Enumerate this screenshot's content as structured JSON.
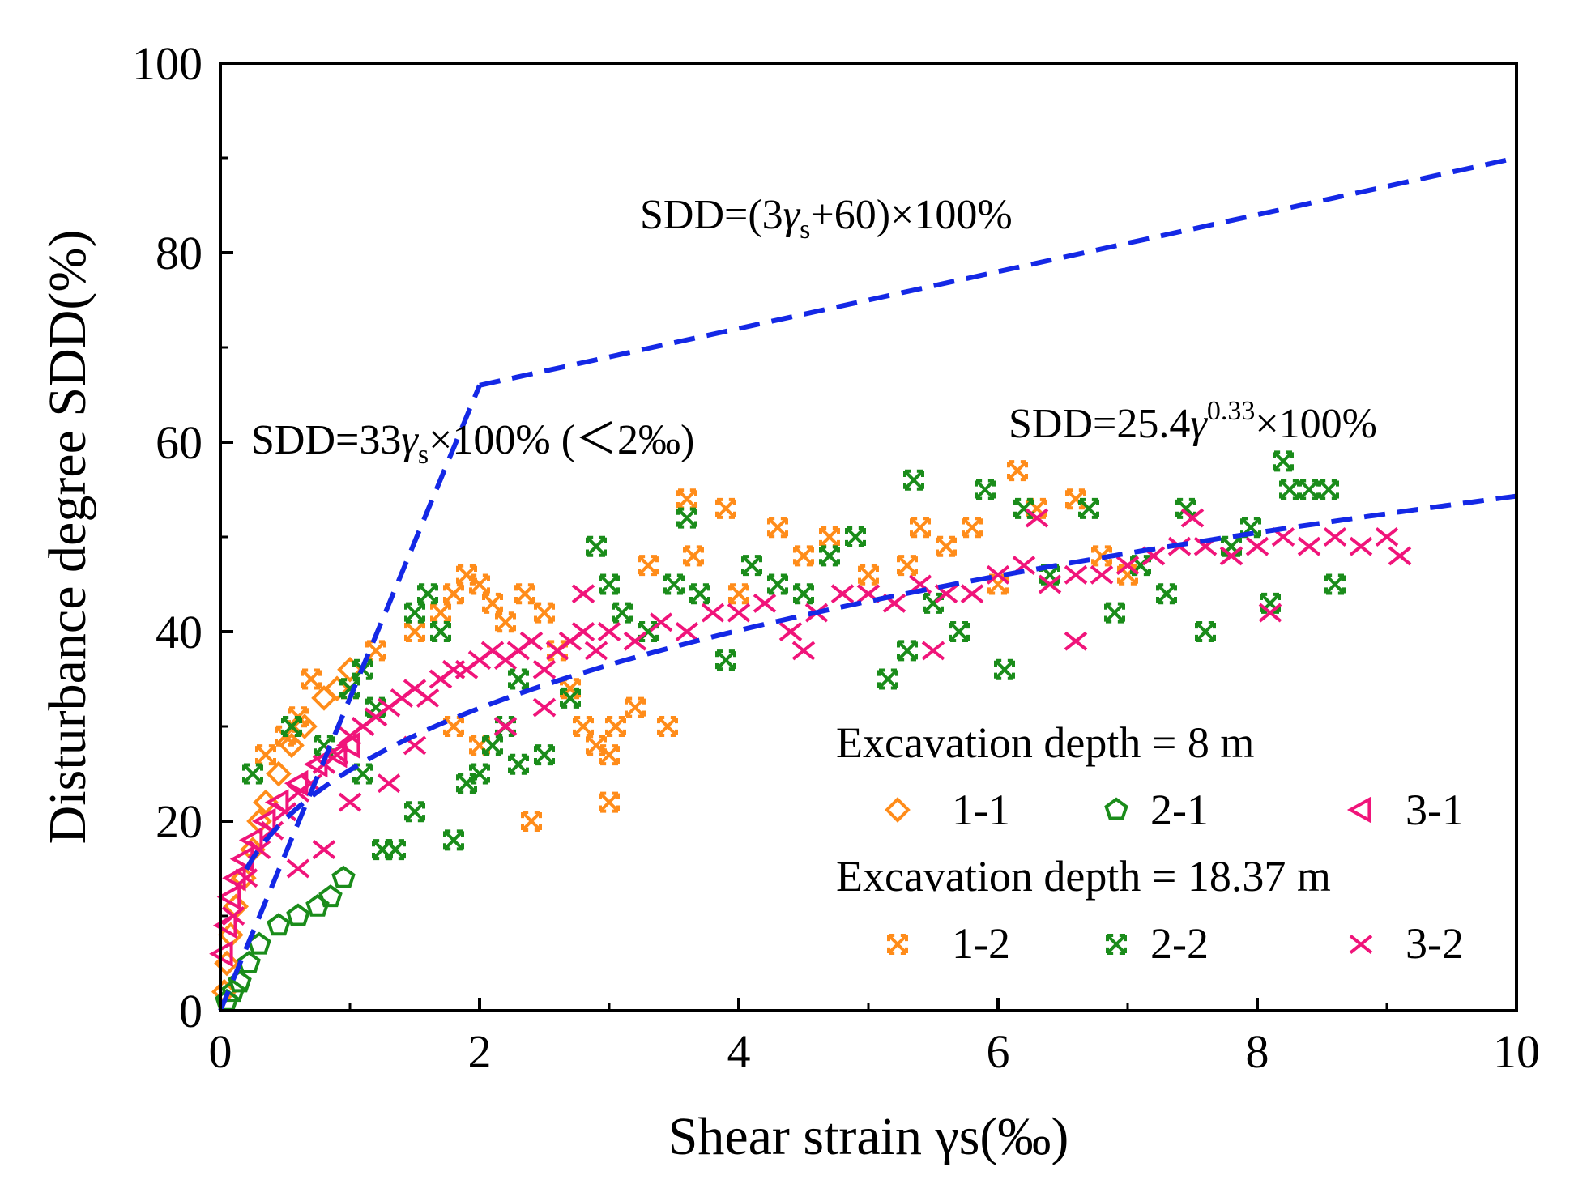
{
  "chart_data": {
    "type": "scatter",
    "xlabel": "Shear strain γs(‰)",
    "ylabel": "Disturbance degree SDD(%)",
    "xlim": [
      0,
      10
    ],
    "ylim": [
      0,
      100
    ],
    "xticks": [
      0,
      2,
      4,
      6,
      8,
      10
    ],
    "yticks": [
      0,
      20,
      40,
      60,
      80,
      100
    ],
    "xtick_labels": [
      "0",
      "2",
      "4",
      "6",
      "8",
      "10"
    ],
    "ytick_labels": [
      "0",
      "20",
      "40",
      "60",
      "80",
      "100"
    ],
    "colors": {
      "orange": "#FF8C1A",
      "green": "#1A8C1A",
      "pink": "#F0147A",
      "blue": "#1428E6"
    },
    "fit_lines": [
      {
        "name": "linear-small-strain",
        "label": "SDD=33γs×100% (＜2‰)",
        "points": [
          [
            0,
            0
          ],
          [
            2,
            66
          ]
        ]
      },
      {
        "name": "linear-large-strain",
        "label": "SDD=(3γs+60)×100%",
        "points": [
          [
            2,
            66
          ],
          [
            10,
            90
          ]
        ]
      },
      {
        "name": "power-fit",
        "label": "SDD=25.4γ0.33×100%",
        "formula": {
          "a": 25.4,
          "b": 0.33
        }
      }
    ],
    "annotation_text": {
      "top": {
        "prefix": "SDD=(3",
        "var": "γ",
        "sub": "s",
        "suffix": "+60)×100%"
      },
      "left": {
        "prefix": "SDD=33",
        "var": "γ",
        "sub": "s",
        "suffix": "×100% (＜2‰)"
      },
      "right": {
        "prefix": "SDD=25.4",
        "var": "γ",
        "sup": "0.33",
        "suffix": "×100%"
      }
    },
    "legend": {
      "group1_title": "Excavation depth = 8 m",
      "group2_title": "Excavation depth = 18.37 m",
      "entries": [
        "1-1",
        "2-1",
        "3-1",
        "1-2",
        "2-2",
        "3-2"
      ]
    },
    "series": [
      {
        "name": "1-1",
        "marker": "diamond",
        "color": "orange",
        "points": [
          [
            0.03,
            2
          ],
          [
            0.05,
            5
          ],
          [
            0.08,
            8
          ],
          [
            0.12,
            11
          ],
          [
            0.18,
            14
          ],
          [
            0.25,
            17
          ],
          [
            0.3,
            20
          ],
          [
            0.35,
            22
          ],
          [
            0.45,
            25
          ],
          [
            0.55,
            28
          ],
          [
            0.65,
            30
          ],
          [
            0.8,
            33
          ],
          [
            0.9,
            34
          ],
          [
            1.0,
            36
          ]
        ]
      },
      {
        "name": "2-1",
        "marker": "pentagon",
        "color": "green",
        "points": [
          [
            0.05,
            1
          ],
          [
            0.1,
            2
          ],
          [
            0.15,
            3
          ],
          [
            0.22,
            5
          ],
          [
            0.3,
            7
          ],
          [
            0.45,
            9
          ],
          [
            0.6,
            10
          ],
          [
            0.75,
            11
          ],
          [
            0.85,
            12
          ],
          [
            0.95,
            14
          ]
        ]
      },
      {
        "name": "3-1",
        "marker": "triangle-left",
        "color": "pink",
        "points": [
          [
            0.02,
            6
          ],
          [
            0.05,
            9
          ],
          [
            0.08,
            12
          ],
          [
            0.12,
            14
          ],
          [
            0.18,
            16
          ],
          [
            0.25,
            18
          ],
          [
            0.35,
            20
          ],
          [
            0.45,
            22
          ],
          [
            0.6,
            24
          ],
          [
            0.75,
            26
          ],
          [
            0.9,
            27
          ],
          [
            1.0,
            28
          ]
        ]
      },
      {
        "name": "1-2",
        "marker": "x-box",
        "color": "orange",
        "points": [
          [
            1.2,
            38
          ],
          [
            1.5,
            40
          ],
          [
            1.7,
            42
          ],
          [
            1.8,
            44
          ],
          [
            1.9,
            46
          ],
          [
            2.0,
            45
          ],
          [
            2.1,
            43
          ],
          [
            2.2,
            41
          ],
          [
            2.35,
            44
          ],
          [
            2.5,
            42
          ],
          [
            2.6,
            38
          ],
          [
            2.7,
            34
          ],
          [
            2.8,
            30
          ],
          [
            2.9,
            28
          ],
          [
            3.0,
            27
          ],
          [
            3.05,
            30
          ],
          [
            3.2,
            32
          ],
          [
            3.3,
            47
          ],
          [
            3.45,
            30
          ],
          [
            3.6,
            54
          ],
          [
            3.65,
            48
          ],
          [
            3.9,
            53
          ],
          [
            4.0,
            44
          ],
          [
            4.3,
            51
          ],
          [
            4.5,
            48
          ],
          [
            4.7,
            50
          ],
          [
            5.0,
            46
          ],
          [
            5.3,
            47
          ],
          [
            5.4,
            51
          ],
          [
            5.6,
            49
          ],
          [
            5.8,
            51
          ],
          [
            6.0,
            45
          ],
          [
            6.15,
            57
          ],
          [
            6.3,
            53
          ],
          [
            6.6,
            54
          ],
          [
            6.8,
            48
          ],
          [
            7.0,
            46
          ],
          [
            2.4,
            20
          ],
          [
            3.0,
            22
          ],
          [
            1.8,
            30
          ],
          [
            2.0,
            28
          ],
          [
            0.7,
            35
          ],
          [
            0.5,
            29
          ],
          [
            0.35,
            27
          ],
          [
            0.6,
            31
          ],
          [
            1.0,
            34
          ]
        ]
      },
      {
        "name": "2-2",
        "marker": "x-box",
        "color": "green",
        "points": [
          [
            0.25,
            25
          ],
          [
            0.55,
            30
          ],
          [
            0.8,
            28
          ],
          [
            1.0,
            34
          ],
          [
            1.1,
            36
          ],
          [
            1.2,
            32
          ],
          [
            1.25,
            17
          ],
          [
            1.35,
            17
          ],
          [
            1.5,
            42
          ],
          [
            1.6,
            44
          ],
          [
            1.7,
            40
          ],
          [
            1.8,
            18
          ],
          [
            1.9,
            24
          ],
          [
            2.0,
            25
          ],
          [
            2.1,
            28
          ],
          [
            2.2,
            30
          ],
          [
            2.3,
            26
          ],
          [
            2.5,
            27
          ],
          [
            2.7,
            33
          ],
          [
            2.9,
            49
          ],
          [
            3.0,
            45
          ],
          [
            3.1,
            42
          ],
          [
            3.3,
            40
          ],
          [
            3.5,
            45
          ],
          [
            3.6,
            52
          ],
          [
            3.7,
            44
          ],
          [
            3.9,
            37
          ],
          [
            4.1,
            47
          ],
          [
            4.3,
            45
          ],
          [
            4.5,
            44
          ],
          [
            4.7,
            48
          ],
          [
            4.9,
            50
          ],
          [
            5.15,
            35
          ],
          [
            5.3,
            38
          ],
          [
            5.35,
            56
          ],
          [
            5.5,
            43
          ],
          [
            5.7,
            40
          ],
          [
            5.9,
            55
          ],
          [
            6.05,
            36
          ],
          [
            6.2,
            53
          ],
          [
            6.4,
            46
          ],
          [
            6.7,
            53
          ],
          [
            6.9,
            42
          ],
          [
            7.1,
            47
          ],
          [
            7.3,
            44
          ],
          [
            7.45,
            53
          ],
          [
            7.6,
            40
          ],
          [
            7.8,
            49
          ],
          [
            7.95,
            51
          ],
          [
            8.1,
            43
          ],
          [
            8.2,
            58
          ],
          [
            8.25,
            55
          ],
          [
            8.4,
            55
          ],
          [
            8.55,
            55
          ],
          [
            8.6,
            45
          ],
          [
            1.5,
            21
          ],
          [
            2.3,
            35
          ],
          [
            1.1,
            25
          ]
        ]
      },
      {
        "name": "3-2",
        "marker": "x-cross",
        "color": "pink",
        "points": [
          [
            0.1,
            10
          ],
          [
            0.2,
            14
          ],
          [
            0.3,
            17
          ],
          [
            0.4,
            19
          ],
          [
            0.5,
            21
          ],
          [
            0.6,
            23
          ],
          [
            0.7,
            24
          ],
          [
            0.8,
            26
          ],
          [
            0.9,
            27
          ],
          [
            1.0,
            29
          ],
          [
            1.1,
            30
          ],
          [
            1.2,
            31
          ],
          [
            1.3,
            32
          ],
          [
            1.4,
            33
          ],
          [
            1.5,
            34
          ],
          [
            1.6,
            33
          ],
          [
            1.7,
            35
          ],
          [
            1.8,
            36
          ],
          [
            1.9,
            36
          ],
          [
            2.0,
            37
          ],
          [
            2.1,
            38
          ],
          [
            2.2,
            37
          ],
          [
            2.3,
            38
          ],
          [
            2.4,
            39
          ],
          [
            2.5,
            36
          ],
          [
            2.6,
            38
          ],
          [
            2.7,
            39
          ],
          [
            2.8,
            40
          ],
          [
            2.9,
            38
          ],
          [
            3.0,
            40
          ],
          [
            3.2,
            39
          ],
          [
            3.4,
            41
          ],
          [
            3.6,
            40
          ],
          [
            3.8,
            42
          ],
          [
            4.0,
            42
          ],
          [
            4.2,
            43
          ],
          [
            4.4,
            40
          ],
          [
            4.6,
            42
          ],
          [
            4.8,
            44
          ],
          [
            5.0,
            44
          ],
          [
            5.2,
            43
          ],
          [
            5.4,
            45
          ],
          [
            5.6,
            44
          ],
          [
            5.8,
            44
          ],
          [
            6.0,
            46
          ],
          [
            6.2,
            47
          ],
          [
            6.4,
            45
          ],
          [
            6.6,
            46
          ],
          [
            6.8,
            46
          ],
          [
            7.0,
            47
          ],
          [
            7.2,
            48
          ],
          [
            7.4,
            49
          ],
          [
            7.6,
            49
          ],
          [
            7.8,
            48
          ],
          [
            8.0,
            49
          ],
          [
            8.2,
            50
          ],
          [
            8.4,
            49
          ],
          [
            8.6,
            50
          ],
          [
            8.8,
            49
          ],
          [
            9.0,
            50
          ],
          [
            9.1,
            48
          ],
          [
            1.3,
            24
          ],
          [
            1.5,
            28
          ],
          [
            2.2,
            30
          ],
          [
            2.5,
            32
          ],
          [
            0.6,
            15
          ],
          [
            0.8,
            17
          ],
          [
            1.0,
            22
          ],
          [
            2.8,
            44
          ],
          [
            4.5,
            38
          ],
          [
            5.5,
            38
          ],
          [
            6.6,
            39
          ],
          [
            8.1,
            42
          ],
          [
            6.3,
            52
          ],
          [
            7.5,
            52
          ]
        ]
      }
    ]
  }
}
